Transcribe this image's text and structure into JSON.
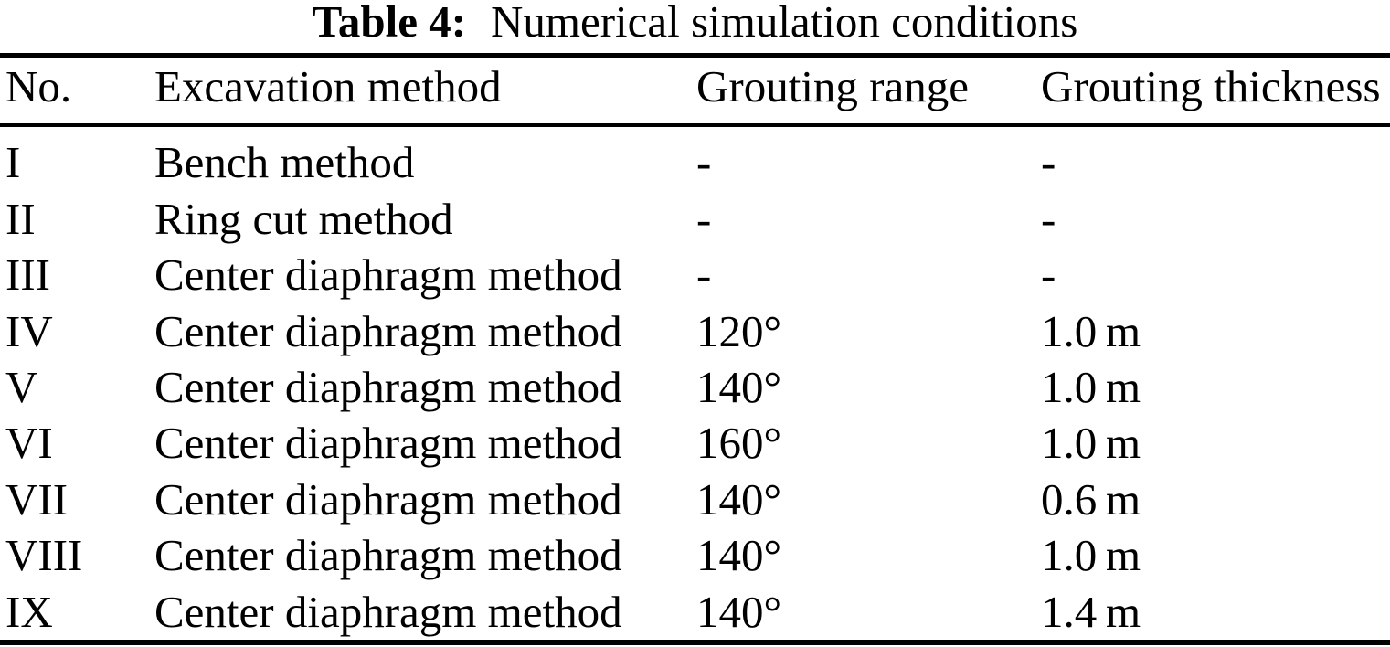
{
  "caption": {
    "label": "Table 4:",
    "text": "Numerical simulation conditions"
  },
  "table": {
    "columns": [
      "No.",
      "Excavation method",
      "Grouting range",
      "Grouting thickness"
    ],
    "rows": [
      {
        "no": "I",
        "method": "Bench method",
        "range": "-",
        "thickness": "-"
      },
      {
        "no": "II",
        "method": "Ring cut method",
        "range": "-",
        "thickness": "-"
      },
      {
        "no": "III",
        "method": "Center diaphragm method",
        "range": "-",
        "thickness": "-"
      },
      {
        "no": "IV",
        "method": "Center diaphragm method",
        "range": "120°",
        "thickness": "1.0 m"
      },
      {
        "no": "V",
        "method": "Center diaphragm method",
        "range": "140°",
        "thickness": "1.0 m"
      },
      {
        "no": "VI",
        "method": "Center diaphragm method",
        "range": "160°",
        "thickness": "1.0 m"
      },
      {
        "no": "VII",
        "method": "Center diaphragm method",
        "range": "140°",
        "thickness": "0.6 m"
      },
      {
        "no": "VIII",
        "method": "Center diaphragm method",
        "range": "140°",
        "thickness": "1.0 m"
      },
      {
        "no": "IX",
        "method": "Center diaphragm method",
        "range": "140°",
        "thickness": "1.4 m"
      }
    ]
  },
  "colors": {
    "text": "#000000",
    "background": "#ffffff",
    "rule": "#000000"
  }
}
